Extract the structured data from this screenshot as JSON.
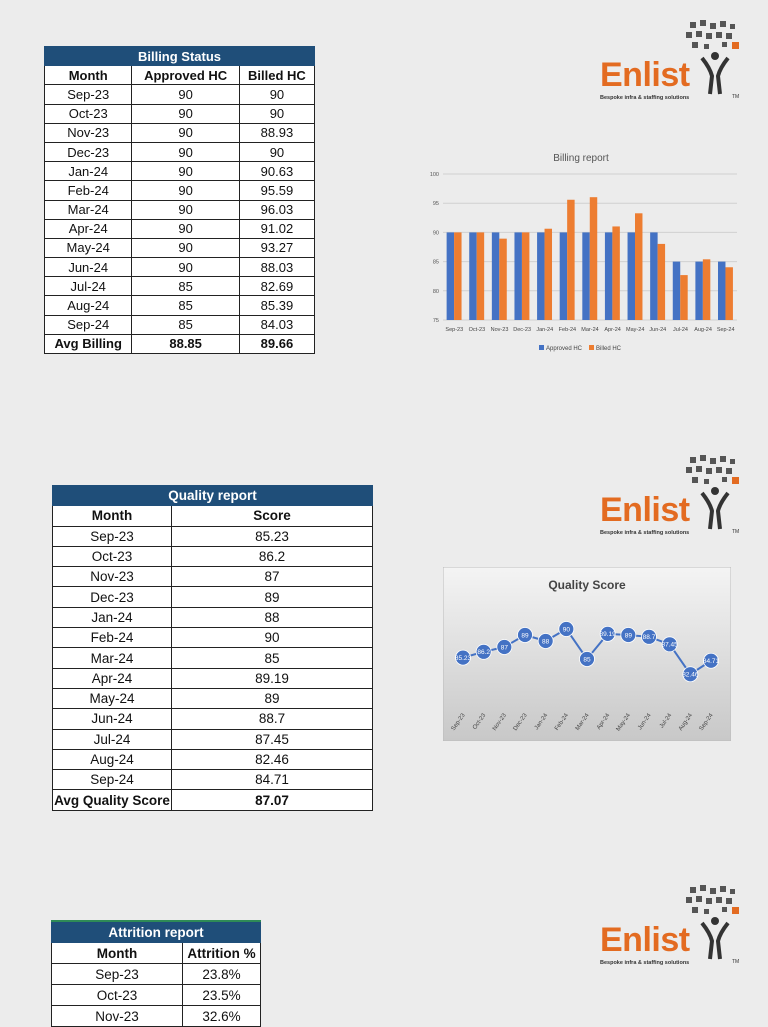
{
  "billing": {
    "title": "Billing Status",
    "headers": [
      "Month",
      "Approved HC",
      "Billed HC"
    ],
    "rows": [
      [
        "Sep-23",
        "90",
        "90"
      ],
      [
        "Oct-23",
        "90",
        "90"
      ],
      [
        "Nov-23",
        "90",
        "88.93"
      ],
      [
        "Dec-23",
        "90",
        "90"
      ],
      [
        "Jan-24",
        "90",
        "90.63"
      ],
      [
        "Feb-24",
        "90",
        "95.59"
      ],
      [
        "Mar-24",
        "90",
        "96.03"
      ],
      [
        "Apr-24",
        "90",
        "91.02"
      ],
      [
        "May-24",
        "90",
        "93.27"
      ],
      [
        "Jun-24",
        "90",
        "88.03"
      ],
      [
        "Jul-24",
        "85",
        "82.69"
      ],
      [
        "Aug-24",
        "85",
        "85.39"
      ],
      [
        "Sep-24",
        "85",
        "84.03"
      ]
    ],
    "footer": [
      "Avg Billing",
      "88.85",
      "89.66"
    ]
  },
  "quality": {
    "title": "Quality report",
    "headers": [
      "Month",
      "Score"
    ],
    "rows": [
      [
        "Sep-23",
        "85.23"
      ],
      [
        "Oct-23",
        "86.2"
      ],
      [
        "Nov-23",
        "87"
      ],
      [
        "Dec-23",
        "89"
      ],
      [
        "Jan-24",
        "88"
      ],
      [
        "Feb-24",
        "90"
      ],
      [
        "Mar-24",
        "85"
      ],
      [
        "Apr-24",
        "89.19"
      ],
      [
        "May-24",
        "89"
      ],
      [
        "Jun-24",
        "88.7"
      ],
      [
        "Jul-24",
        "87.45"
      ],
      [
        "Aug-24",
        "82.46"
      ],
      [
        "Sep-24",
        "84.71"
      ]
    ],
    "footer": [
      "Avg Quality Score",
      "87.07"
    ]
  },
  "attrition": {
    "title": "Attrition report",
    "headers": [
      "Month",
      "Attrition %"
    ],
    "rows": [
      [
        "Sep-23",
        "23.8%"
      ],
      [
        "Oct-23",
        "23.5%"
      ],
      [
        "Nov-23",
        "32.6%"
      ]
    ]
  },
  "logo": {
    "word": "Enlist",
    "tagline": "Bespoke infra & staffing solutions",
    "tm": "TM"
  },
  "colors": {
    "header_blue": "#1f4e79",
    "approved": "#4472c4",
    "billed": "#ed7d31",
    "brand_orange": "#e36b21"
  },
  "chart_data": [
    {
      "type": "bar",
      "title": "Billing report",
      "categories": [
        "Sep-23",
        "Oct-23",
        "Nov-23",
        "Dec-23",
        "Jan-24",
        "Feb-24",
        "Mar-24",
        "Apr-24",
        "May-24",
        "Jun-24",
        "Jul-24",
        "Aug-24",
        "Sep-24"
      ],
      "series": [
        {
          "name": "Approved HC",
          "values": [
            90,
            90,
            90,
            90,
            90,
            90,
            90,
            90,
            90,
            90,
            85,
            85,
            85
          ]
        },
        {
          "name": "Billed HC",
          "values": [
            90,
            90,
            88.93,
            90,
            90.63,
            95.59,
            96.03,
            91.02,
            93.27,
            88.03,
            82.69,
            85.39,
            84.03
          ]
        }
      ],
      "yticks": [
        "75",
        "80",
        "85",
        "90",
        "95",
        "100"
      ],
      "ylim": [
        75,
        100
      ],
      "legend": "bottom"
    },
    {
      "type": "line",
      "title": "Quality Score",
      "categories": [
        "Sep-23",
        "Oct-23",
        "Nov-23",
        "Dec-23",
        "Jan-24",
        "Feb-24",
        "Mar-24",
        "Apr-24",
        "May-24",
        "Jun-24",
        "Jul-24",
        "Aug-24",
        "Sep-24"
      ],
      "values": [
        85.23,
        86.2,
        87,
        89,
        88,
        90,
        85,
        89.19,
        89,
        88.7,
        87.45,
        82.46,
        84.71
      ],
      "labels": [
        "85.23",
        "86.2",
        "87",
        "89",
        "88",
        "90",
        "85",
        "89.19",
        "89",
        "88.7",
        "87.45",
        "82.46",
        "84.71"
      ],
      "ylim": [
        80,
        92
      ]
    }
  ]
}
